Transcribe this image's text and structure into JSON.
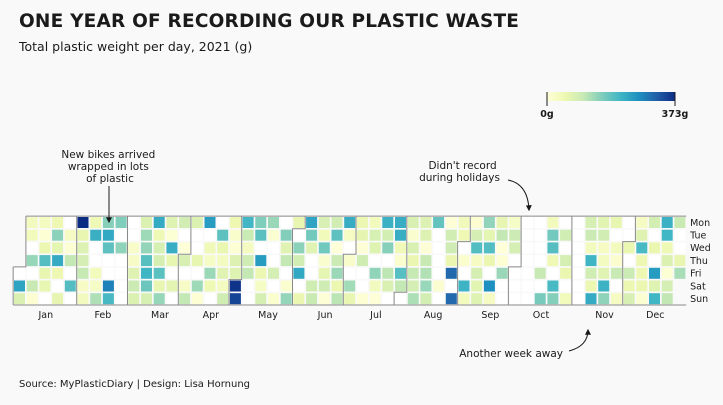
{
  "header": {
    "title": "ONE YEAR OF RECORDING OUR PLASTIC WASTE",
    "subtitle": "Total plastic weight per day, 2021 (g)"
  },
  "footer": {
    "source": "Source: MyPlasticDiary  |  Design: Lisa Hornung"
  },
  "colors": {
    "background": "#f9f9f9",
    "scale": [
      "#ffffd9",
      "#edf8b1",
      "#c7e9b4",
      "#7fcdbb",
      "#41b6c4",
      "#1d91c0",
      "#225ea8",
      "#0c2c84"
    ],
    "month_boundary": "#8a8a8a",
    "missing_cell": "#ffffff"
  },
  "chart_data": {
    "type": "heatmap",
    "year": 2021,
    "title": "ONE YEAR OF RECORDING OUR PLASTIC WASTE",
    "subtitle": "Total plastic weight per day, 2021 (g)",
    "value_unit": "g",
    "value_range": [
      0,
      373
    ],
    "legend": {
      "min_label": "0g",
      "max_label": "373g",
      "placement": "top-right"
    },
    "weekday_labels": [
      "Mon",
      "Tue",
      "Wed",
      "Thu",
      "Fri",
      "Sat",
      "Sun"
    ],
    "month_labels": [
      "Jan",
      "Feb",
      "Mar",
      "Apr",
      "May",
      "Jun",
      "Jul",
      "Aug",
      "Sep",
      "Oct",
      "Nov",
      "Dec"
    ],
    "missing_periods": [
      {
        "start": "2021-10-01",
        "end": "2021-10-14"
      },
      {
        "start": "2021-11-01",
        "end": "2021-11-07"
      }
    ],
    "peaks": [
      {
        "date": "2021-02-01",
        "value": 373
      },
      {
        "date": "2021-05-01",
        "value": 365
      }
    ],
    "annotations": [
      {
        "text": "New bikes arrived\nwrapped in lots\nof plastic",
        "date": "2021-02-01"
      },
      {
        "text": "Didn't record\nduring holidays",
        "date": "2021-10-05"
      },
      {
        "text": "Another week away",
        "date": "2021-11-03"
      }
    ]
  }
}
